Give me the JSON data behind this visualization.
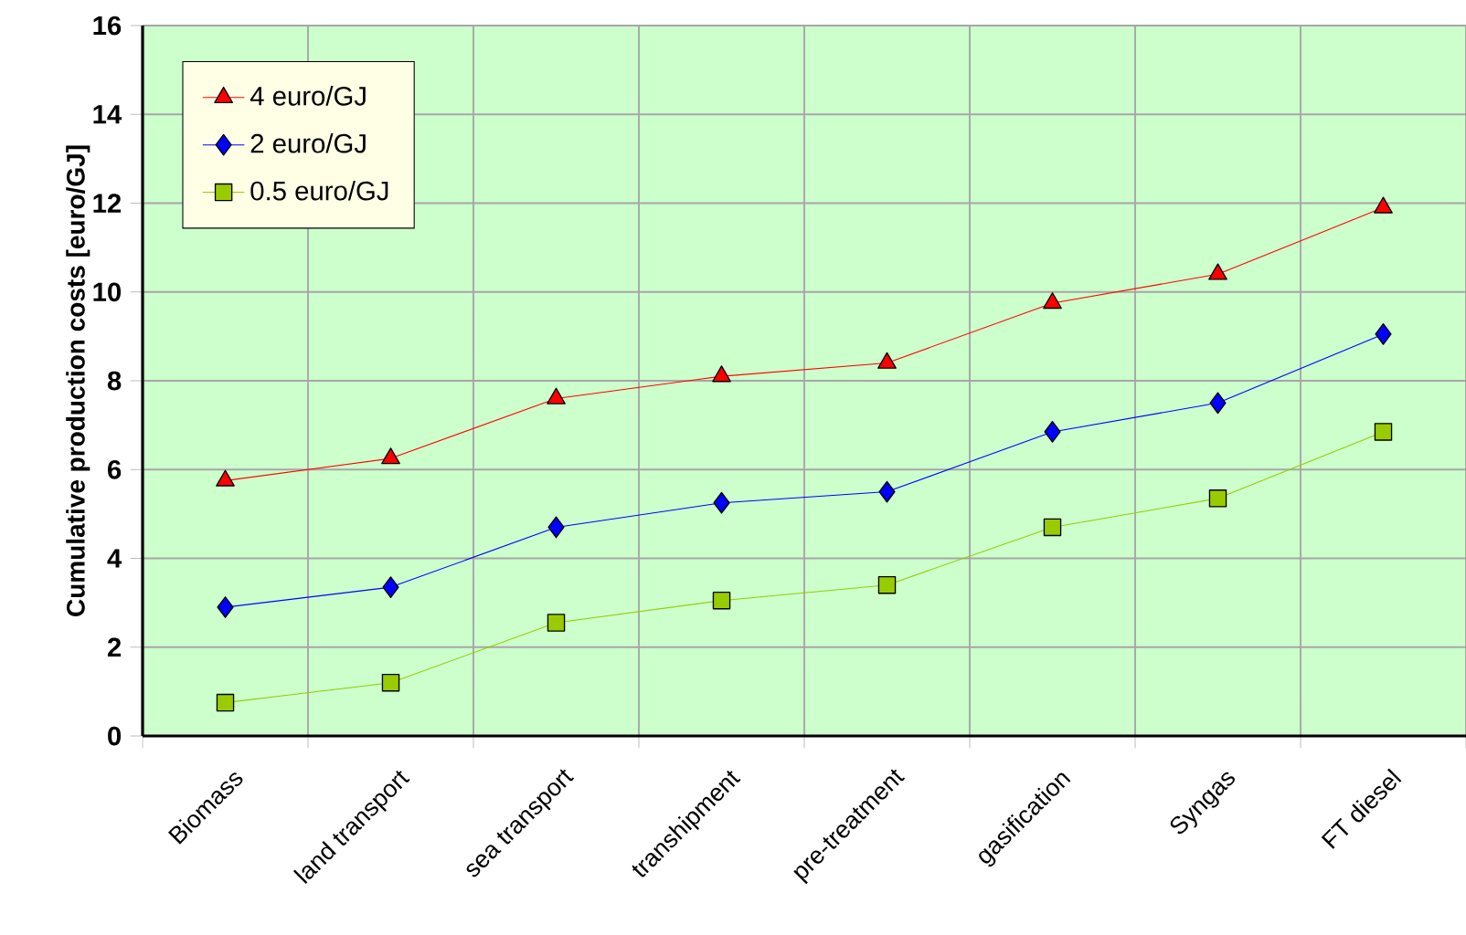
{
  "chart_data": {
    "type": "line",
    "ylabel": "Cumulative production costs [euro/GJ]",
    "categories": [
      "Biomass",
      "land transport",
      "sea transport",
      "transhipment",
      "pre-treatment",
      "gasification",
      "Syngas",
      "FT diesel"
    ],
    "series": [
      {
        "name": "4 euro/GJ",
        "color": "#ff0000",
        "marker": "triangle",
        "values": [
          5.75,
          6.25,
          7.6,
          8.1,
          8.4,
          9.75,
          10.4,
          11.9
        ]
      },
      {
        "name": "2 euro/GJ",
        "color": "#0000ff",
        "marker": "diamond",
        "values": [
          2.9,
          3.35,
          4.7,
          5.25,
          5.5,
          6.85,
          7.5,
          9.05
        ]
      },
      {
        "name": "0.5 euro/GJ",
        "color": "#99cc00",
        "marker": "square",
        "values": [
          0.75,
          1.2,
          2.55,
          3.05,
          3.4,
          4.7,
          5.35,
          6.85
        ]
      }
    ],
    "ylim": [
      0,
      16
    ],
    "yticks": [
      0,
      2,
      4,
      6,
      8,
      10,
      12,
      14,
      16
    ],
    "grid": true,
    "legend": "top left",
    "line_style": "solid"
  }
}
